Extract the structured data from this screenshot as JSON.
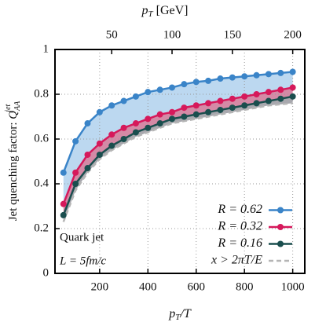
{
  "chart_data": {
    "type": "line",
    "top_axis_label": {
      "symbol": "p",
      "sub": "T",
      "rest": " [GeV]"
    },
    "xlabel": {
      "symbol": "p",
      "sub": "T",
      "rest": "/T"
    },
    "ylabel": {
      "text": "Jet quenching factor: ",
      "symbol": "Q",
      "sub": "AA",
      "sup": "jet"
    },
    "annotations": [
      "Quark jet",
      "L = 5fm/c"
    ],
    "x": [
      50,
      100,
      150,
      200,
      250,
      300,
      350,
      400,
      450,
      500,
      550,
      600,
      650,
      700,
      750,
      800,
      850,
      900,
      950,
      1000
    ],
    "series": [
      {
        "name": "R = 0.62",
        "color": "#3a84c8",
        "band_color": "#bcd8f0",
        "markers": true,
        "dashed": false,
        "values": [
          0.45,
          0.59,
          0.67,
          0.72,
          0.75,
          0.77,
          0.79,
          0.81,
          0.82,
          0.83,
          0.845,
          0.855,
          0.86,
          0.87,
          0.875,
          0.88,
          0.885,
          0.89,
          0.895,
          0.9
        ]
      },
      {
        "name": "R = 0.32",
        "color": "#d6195b",
        "band_color": "#d48aa6",
        "markers": true,
        "dashed": false,
        "values": [
          0.31,
          0.45,
          0.53,
          0.58,
          0.62,
          0.65,
          0.67,
          0.69,
          0.71,
          0.72,
          0.74,
          0.75,
          0.76,
          0.77,
          0.78,
          0.79,
          0.8,
          0.81,
          0.82,
          0.83
        ]
      },
      {
        "name": "R = 0.16",
        "color": "#1a4e4e",
        "band_color": "#a8a8ae",
        "markers": true,
        "dashed": false,
        "values": [
          0.26,
          0.4,
          0.47,
          0.53,
          0.57,
          0.6,
          0.63,
          0.65,
          0.67,
          0.69,
          0.7,
          0.71,
          0.72,
          0.73,
          0.74,
          0.75,
          0.76,
          0.77,
          0.78,
          0.79
        ]
      },
      {
        "name": "x > 2πT/E",
        "color": "#b5b5b5",
        "markers": false,
        "dashed": true,
        "values": [
          0.23,
          0.37,
          0.45,
          0.51,
          0.55,
          0.58,
          0.61,
          0.63,
          0.65,
          0.67,
          0.68,
          0.69,
          0.7,
          0.71,
          0.72,
          0.73,
          0.74,
          0.75,
          0.755,
          0.76
        ]
      }
    ],
    "xlim": [
      15,
      1050
    ],
    "xticks": [
      200,
      400,
      600,
      800,
      1000
    ],
    "x2lim": [
      3,
      210
    ],
    "x2ticks": [
      50,
      100,
      150,
      200
    ],
    "ylim": [
      0,
      1
    ],
    "yticks": [
      0,
      0.2,
      0.4,
      0.6,
      0.8,
      1
    ],
    "grid": true,
    "legend": "lower right"
  }
}
